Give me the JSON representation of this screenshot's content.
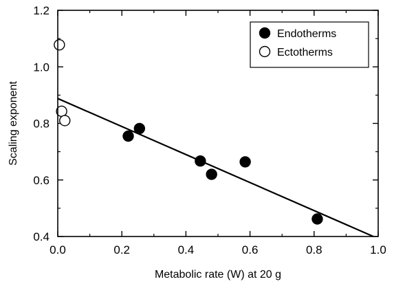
{
  "chart_data": {
    "type": "scatter",
    "xlabel": "Metabolic rate (W) at 20 g",
    "ylabel": "Scaling exponent",
    "xlim": [
      0.0,
      1.0
    ],
    "ylim": [
      0.4,
      1.2
    ],
    "x_ticks": [
      0.0,
      0.2,
      0.4,
      0.6,
      0.8,
      1.0
    ],
    "x_tick_labels": [
      "0.0",
      "0.2",
      "0.4",
      "0.6",
      "0.8",
      "1.0"
    ],
    "y_ticks": [
      0.4,
      0.6,
      0.8,
      1.0,
      1.2
    ],
    "y_tick_labels": [
      "0.4",
      "0.6",
      "0.8",
      "1.0",
      "1.2"
    ],
    "legend_position": "top-right",
    "grid": false,
    "series": [
      {
        "name": "Endotherms",
        "marker": "filled-circle",
        "color": "#000000",
        "points": [
          {
            "x": 0.22,
            "y": 0.755
          },
          {
            "x": 0.255,
            "y": 0.782
          },
          {
            "x": 0.445,
            "y": 0.667
          },
          {
            "x": 0.48,
            "y": 0.62
          },
          {
            "x": 0.585,
            "y": 0.664
          },
          {
            "x": 0.81,
            "y": 0.462
          }
        ]
      },
      {
        "name": "Ectotherms",
        "marker": "open-circle",
        "color": "#000000",
        "points": [
          {
            "x": 0.005,
            "y": 1.078
          },
          {
            "x": 0.012,
            "y": 0.843
          },
          {
            "x": 0.022,
            "y": 0.81
          }
        ]
      }
    ],
    "fit_line": {
      "x": [
        0.0,
        0.985
      ],
      "y": [
        0.888,
        0.4
      ]
    }
  }
}
